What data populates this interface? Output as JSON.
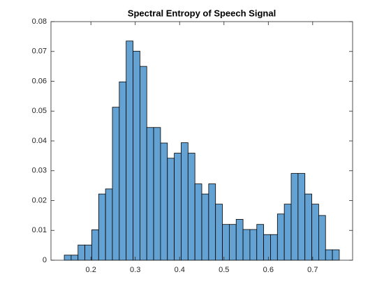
{
  "chart_data": {
    "type": "histogram",
    "title": "Spectral Entropy of Speech Signal",
    "bins": [
      0.14,
      0.1555,
      0.171,
      0.1865,
      0.202,
      0.2175,
      0.233,
      0.2485,
      0.264,
      0.2795,
      0.295,
      0.3105,
      0.326,
      0.3415,
      0.357,
      0.3725,
      0.388,
      0.4035,
      0.419,
      0.4345,
      0.45,
      0.4655,
      0.481,
      0.4965,
      0.512,
      0.5275,
      0.543,
      0.5585,
      0.574,
      0.5895,
      0.605,
      0.6205,
      0.636,
      0.6515,
      0.667,
      0.6825,
      0.698,
      0.7135,
      0.729,
      0.7445,
      0.76
    ],
    "values": [
      0.0017,
      0.0017,
      0.0051,
      0.0051,
      0.0102,
      0.0222,
      0.0239,
      0.0513,
      0.0598,
      0.0735,
      0.0701,
      0.065,
      0.0445,
      0.0445,
      0.0393,
      0.0342,
      0.0359,
      0.0394,
      0.0359,
      0.0256,
      0.0222,
      0.0256,
      0.0188,
      0.012,
      0.012,
      0.0137,
      0.0103,
      0.0103,
      0.012,
      0.0086,
      0.0086,
      0.0155,
      0.0188,
      0.0291,
      0.0291,
      0.0222,
      0.0188,
      0.015,
      0.0035,
      0.0035
    ],
    "color": "#65a2d4",
    "xlim": [
      0.11,
      0.79
    ],
    "xticks": [
      0.2,
      0.3,
      0.4,
      0.5,
      0.6,
      0.7
    ],
    "ylim": [
      0,
      0.08
    ],
    "yticks": [
      0,
      0.01,
      0.02,
      0.03,
      0.04,
      0.05,
      0.06,
      0.07,
      0.08
    ]
  }
}
